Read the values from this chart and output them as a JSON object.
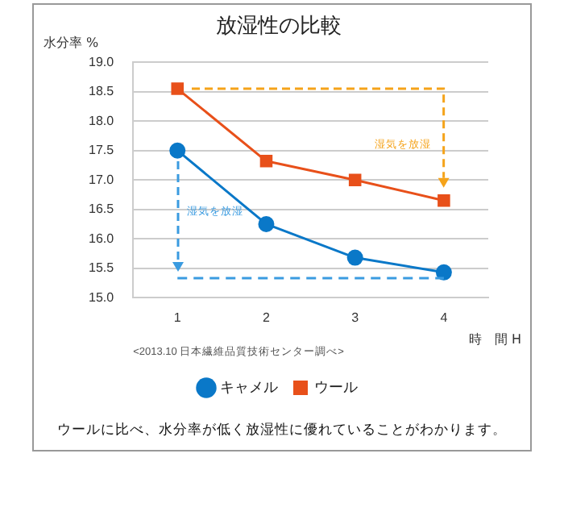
{
  "chart_data": {
    "type": "line",
    "title": "放湿性の比較",
    "xlabel": "時　間 H",
    "ylabel": "水分率 %",
    "categories": [
      "1",
      "2",
      "3",
      "4"
    ],
    "series": [
      {
        "name": "キャメル",
        "color": "#0a78c8",
        "marker": "circle",
        "values": [
          17.5,
          16.25,
          15.68,
          15.43
        ]
      },
      {
        "name": "ウール",
        "color": "#e8501a",
        "marker": "square",
        "values": [
          18.55,
          17.32,
          17.0,
          16.65
        ]
      }
    ],
    "ylim": [
      15,
      19
    ],
    "yticks": [
      {
        "value": 15,
        "label": "15.0"
      },
      15.5,
      {
        "value": 16,
        "label": "16.0"
      },
      16.5,
      {
        "value": 17,
        "label": "17.0"
      },
      17.5,
      {
        "value": 18,
        "label": "18.0"
      },
      18.5,
      {
        "value": 19,
        "label": "19.0"
      }
    ],
    "ref_lines": [
      {
        "axis": "y",
        "value": 15.33,
        "color": "#3a9be0",
        "line_style": "dashed"
      }
    ],
    "grid": "y",
    "legend": "bottom",
    "line_style": "solid",
    "annotations": [
      "湿気を放湿",
      "湿気を放湿",
      "<2013.10 日本繊維品質技術センター調べ>",
      "ウールに比べ、水分率が低く放湿性に優れていることがわかります。"
    ]
  }
}
